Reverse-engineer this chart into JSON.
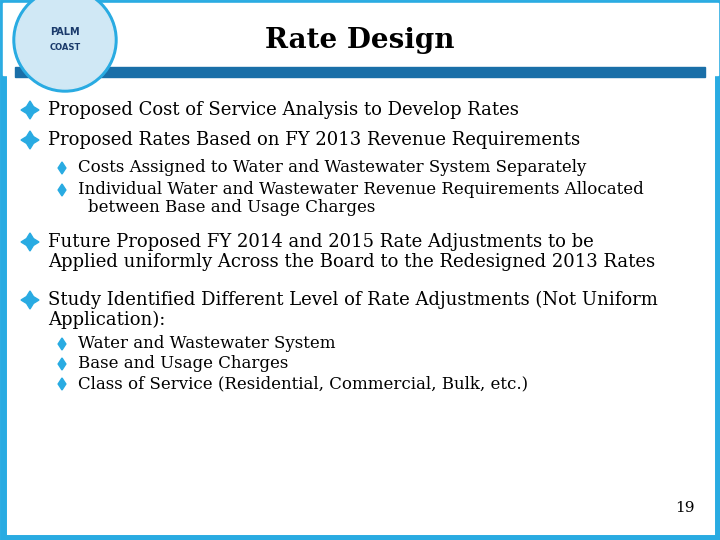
{
  "title": "Rate Design",
  "title_fontsize": 20,
  "border_color": "#29ABE2",
  "border_linewidth": 5,
  "header_bar_color": "#1A6FA8",
  "background_color": "#FFFFFF",
  "bullet_color": "#29ABE2",
  "text_color": "#000000",
  "page_number": "19",
  "bullet1": "Proposed Cost of Service Analysis to Develop Rates",
  "bullet2": "Proposed Rates Based on FY 2013 Revenue Requirements",
  "sub_bullet2a": "Costs Assigned to Water and Wastewater System Separately",
  "sub_bullet2b_line1": "Individual Water and Wastewater Revenue Requirements Allocated",
  "sub_bullet2b_line2": "between Base and Usage Charges",
  "bullet3_line1": "Future Proposed FY 2014 and 2015 Rate Adjustments to be",
  "bullet3_line2": "Applied uniformly Across the Board to the Redesigned 2013 Rates",
  "bullet4_line1": "Study Identified Different Level of Rate Adjustments (Not Uniform",
  "bullet4_line2": "Application):",
  "sub_bullet4a": "Water and Wastewater System",
  "sub_bullet4b": "Base and Usage Charges",
  "sub_bullet4c": "Class of Service (Residential, Commercial, Bulk, etc.)",
  "main_fontsize": 13,
  "sub_fontsize": 12
}
